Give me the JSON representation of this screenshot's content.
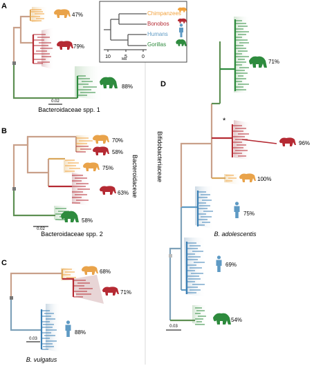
{
  "legend": {
    "items": [
      {
        "label": "Chimpanzees",
        "color": "#f2a23c"
      },
      {
        "label": "Bonobos",
        "color": "#b52a33"
      },
      {
        "label": "Humans",
        "color": "#5e9ac4"
      },
      {
        "label": "Gorillas",
        "color": "#2e8b3e"
      }
    ],
    "axis_ticks": [
      "10",
      "5",
      "0"
    ],
    "axis_unit": "Ma"
  },
  "panels": {
    "a": {
      "letter": "A",
      "title": "Bacteroidaceae spp. 1",
      "scale": "0.02",
      "pct_chimp": "47%",
      "pct_bonobo": "79%",
      "pct_gorilla": "88%"
    },
    "b": {
      "letter": "B",
      "title": "Bacteroidaceae spp. 2",
      "scale": "0.02",
      "pct_chimp1": "70%",
      "pct_bonobo1": "58%",
      "pct_chimp2": "75%",
      "pct_bonobo2": "63%",
      "pct_gorilla": "58%",
      "family": "Bacteroidaceae"
    },
    "c": {
      "letter": "C",
      "title": "B. vulgatus",
      "scale": "0.03",
      "pct_chimp": "68%",
      "pct_bonobo": "71%",
      "pct_human": "88%"
    },
    "d": {
      "letter": "D",
      "family": "Bifidobacteriaceae",
      "star": "*",
      "pct_gorilla1": "71%",
      "pct_bonobo": "96%",
      "pct_chimp": "100%",
      "pct_human1": "75%",
      "label_human1": "B. adolescentis",
      "pct_human2": "69%",
      "pct_gorilla2": "54%",
      "scale": "0.03"
    }
  }
}
